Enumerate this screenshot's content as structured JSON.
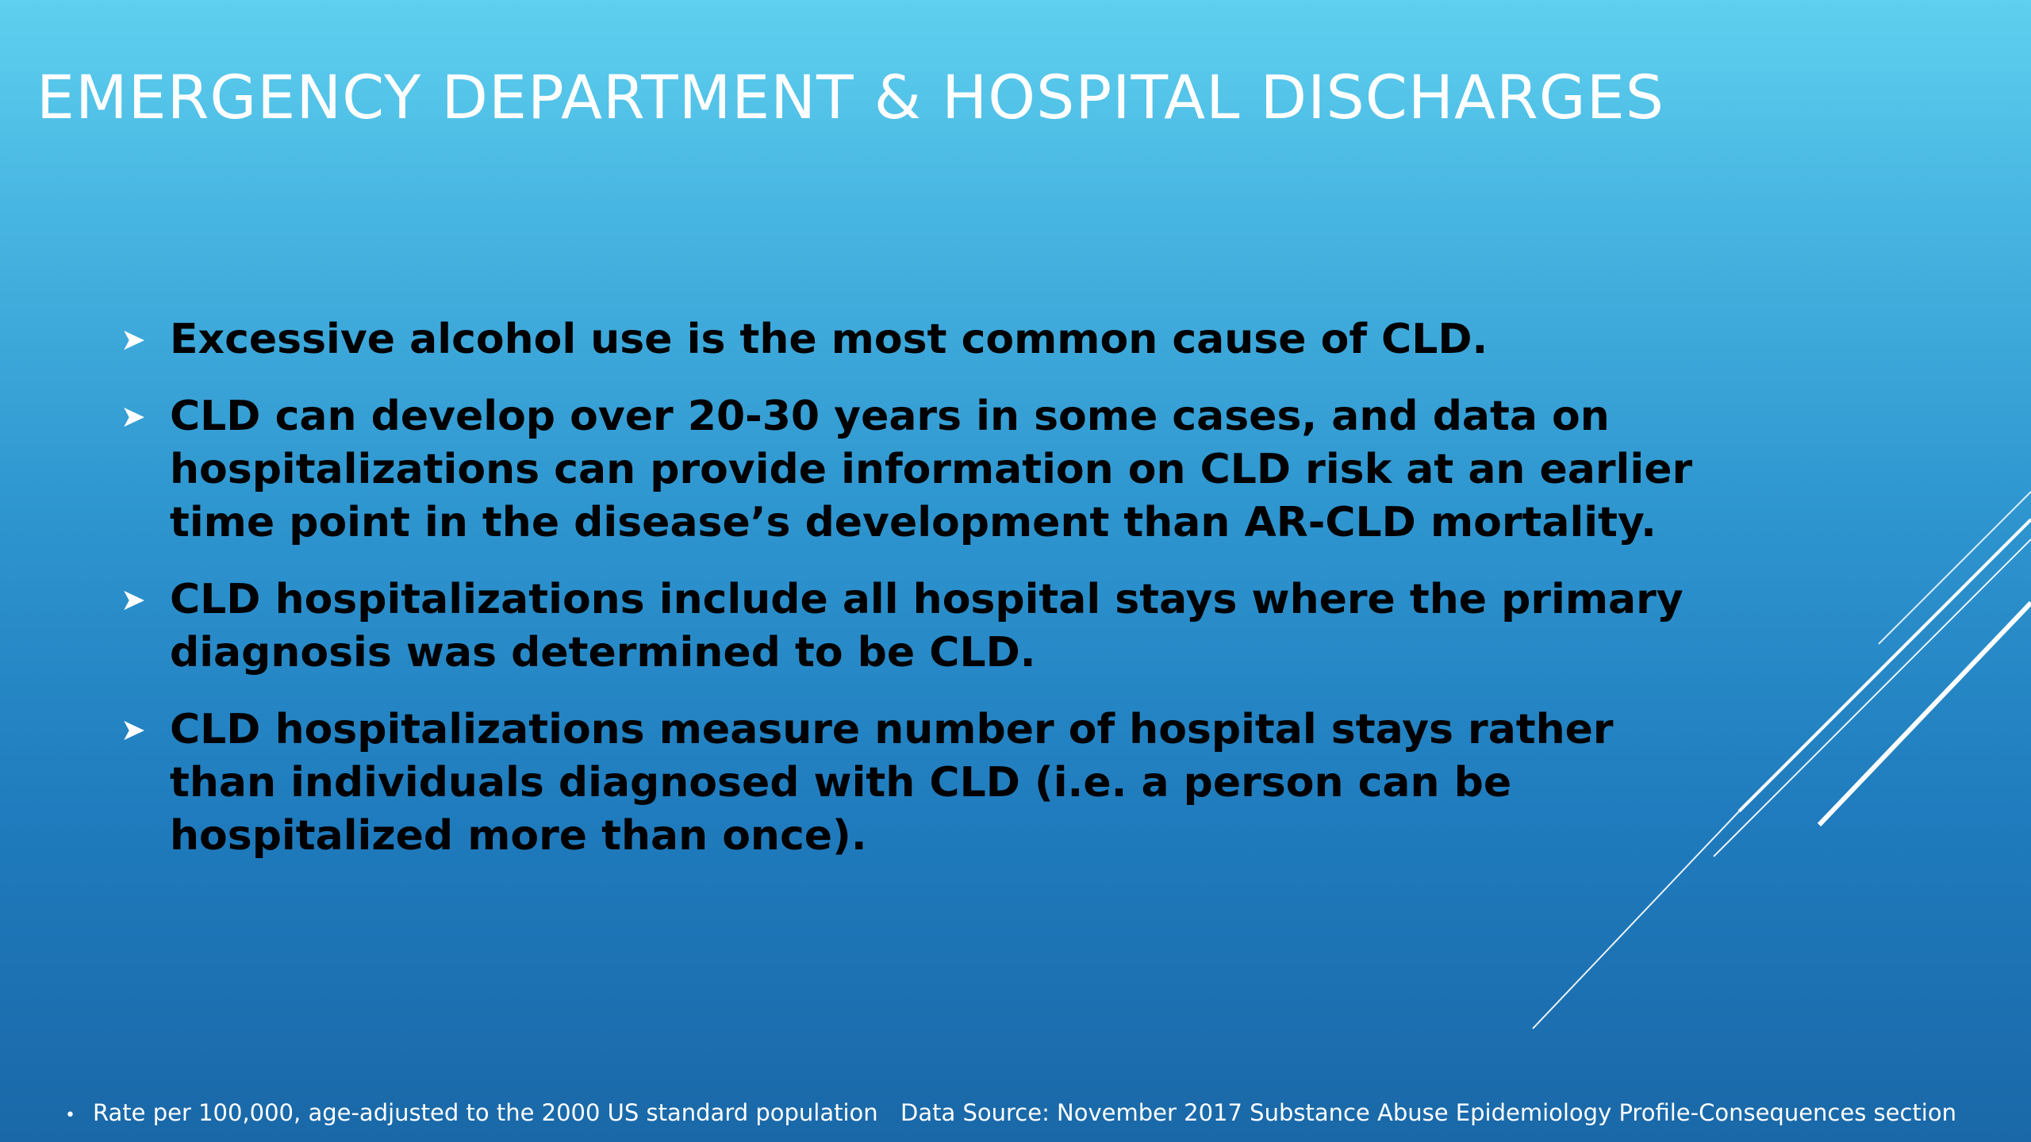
{
  "slide": {
    "title": "EMERGENCY DEPARTMENT & HOSPITAL DISCHARGES",
    "bullet_icon": "arrowhead-bullet-icon",
    "bullets": [
      "Excessive alcohol use is the most common cause of CLD.",
      "CLD can develop over 20-30 years in some cases, and data on hospitalizations can provide information on CLD risk at an earlier time point in the disease’s development than AR-CLD mortality.",
      "CLD hospitalizations include all hospital stays where the primary diagnosis was determined to be CLD.",
      "CLD hospitalizations measure number of hospital stays rather than individuals diagnosed with CLD (i.e. a person can be hospitalized more than once)."
    ],
    "footer": {
      "note_bullet": "•",
      "note": "Rate per 100,000, age-adjusted to the 2000 US standard population",
      "source": "Data Source: November 2017 Substance Abuse Epidemiology Profile-Consequences section"
    },
    "colors": {
      "background_top": "#5fd0ef",
      "background_bottom": "#1a68a8",
      "title": "#ffffff",
      "body_text": "#000000",
      "accent_lines": "#ffffff"
    }
  }
}
